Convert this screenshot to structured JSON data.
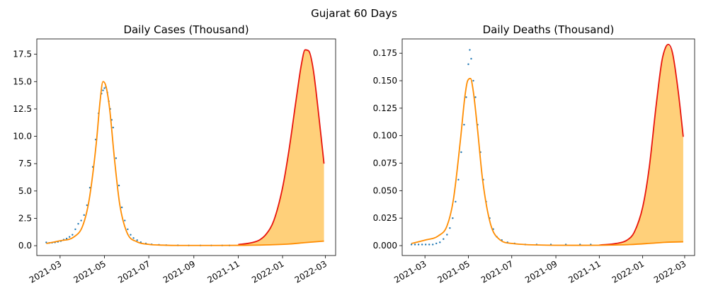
{
  "figure_title": "Gujarat 60 Days",
  "colors": {
    "observed": "#1f77b4",
    "model_early": "#ff8c00",
    "model_projection": "#e8140c",
    "band_fill": "#ffc04d"
  },
  "chart_data": [
    {
      "type": "line",
      "title": "Daily Cases (Thousand)",
      "xlabel": "",
      "ylabel": "",
      "x_axis": "date",
      "xlim": [
        "2021-01-28",
        "2022-03-15"
      ],
      "ylim": [
        -0.9,
        18.9
      ],
      "yticks": [
        0.0,
        2.5,
        5.0,
        7.5,
        10.0,
        12.5,
        15.0,
        17.5
      ],
      "ytick_labels": [
        "0.0",
        "2.5",
        "5.0",
        "7.5",
        "10.0",
        "12.5",
        "15.0",
        "17.5"
      ],
      "xticks": [
        "2021-03-01",
        "2021-05-01",
        "2021-07-01",
        "2021-09-01",
        "2021-11-01",
        "2022-01-01",
        "2022-03-01"
      ],
      "xtick_labels": [
        "2021-03",
        "2021-05",
        "2021-07",
        "2021-09",
        "2021-11",
        "2022-01",
        "2022-03"
      ],
      "grid": false,
      "legend": "none",
      "series": [
        {
          "kind": "scatter",
          "role": "observed",
          "x": [
            "2021-02-10",
            "2021-02-14",
            "2021-02-18",
            "2021-02-22",
            "2021-02-26",
            "2021-03-02",
            "2021-03-06",
            "2021-03-10",
            "2021-03-14",
            "2021-03-18",
            "2021-03-22",
            "2021-03-26",
            "2021-03-30",
            "2021-04-03",
            "2021-04-07",
            "2021-04-11",
            "2021-04-15",
            "2021-04-19",
            "2021-04-23",
            "2021-04-27",
            "2021-04-29",
            "2021-05-01",
            "2021-05-03",
            "2021-05-05",
            "2021-05-07",
            "2021-05-09",
            "2021-05-11",
            "2021-05-13",
            "2021-05-17",
            "2021-05-21",
            "2021-05-25",
            "2021-05-29",
            "2021-06-02",
            "2021-06-06",
            "2021-06-10",
            "2021-06-15",
            "2021-06-20",
            "2021-06-27",
            "2021-07-05",
            "2021-07-15",
            "2021-07-25",
            "2021-08-10",
            "2021-08-25",
            "2021-09-10",
            "2021-09-25",
            "2021-10-10",
            "2021-10-20"
          ],
          "y": [
            0.3,
            0.25,
            0.27,
            0.3,
            0.35,
            0.42,
            0.55,
            0.65,
            0.8,
            1.0,
            1.5,
            2.0,
            2.3,
            2.8,
            3.7,
            5.3,
            7.2,
            9.7,
            12.1,
            13.9,
            14.2,
            14.4,
            14.5,
            14.0,
            13.2,
            12.5,
            11.5,
            10.8,
            8.0,
            5.5,
            3.5,
            2.3,
            1.5,
            1.0,
            0.7,
            0.5,
            0.32,
            0.2,
            0.12,
            0.08,
            0.05,
            0.03,
            0.02,
            0.02,
            0.02,
            0.02,
            0.02
          ]
        },
        {
          "kind": "line",
          "role": "model_early",
          "x": [
            "2021-02-10",
            "2021-03-01",
            "2021-03-20",
            "2021-04-01",
            "2021-04-10",
            "2021-04-20",
            "2021-04-25",
            "2021-04-29",
            "2021-05-03",
            "2021-05-08",
            "2021-05-15",
            "2021-05-22",
            "2021-06-01",
            "2021-06-15",
            "2021-07-01",
            "2021-07-20",
            "2021-08-15",
            "2021-10-01",
            "2021-11-15",
            "2021-12-15",
            "2022-01-10",
            "2022-02-01",
            "2022-02-27"
          ],
          "y": [
            0.2,
            0.45,
            0.8,
            1.8,
            4.2,
            9.5,
            13.2,
            15.0,
            14.6,
            12.6,
            7.8,
            3.8,
            1.2,
            0.35,
            0.12,
            0.05,
            0.02,
            0.02,
            0.04,
            0.08,
            0.15,
            0.28,
            0.42
          ]
        },
        {
          "kind": "line",
          "role": "model_projection",
          "x": [
            "2021-11-01",
            "2021-11-20",
            "2021-12-01",
            "2021-12-10",
            "2021-12-20",
            "2022-01-01",
            "2022-01-10",
            "2022-01-20",
            "2022-01-27",
            "2022-02-01",
            "2022-02-06",
            "2022-02-12",
            "2022-02-20",
            "2022-02-27"
          ],
          "y": [
            0.1,
            0.28,
            0.55,
            1.1,
            2.3,
            5.3,
            8.8,
            13.5,
            16.6,
            17.9,
            17.8,
            16.2,
            11.8,
            7.5
          ]
        }
      ],
      "band": {
        "lower": "model_early",
        "upper": "model_projection",
        "from": "2021-11-01"
      }
    },
    {
      "type": "line",
      "title": "Daily Deaths (Thousand)",
      "xlabel": "",
      "ylabel": "",
      "x_axis": "date",
      "xlim": [
        "2021-01-28",
        "2022-03-15"
      ],
      "ylim": [
        -0.009,
        0.188
      ],
      "yticks": [
        0.0,
        0.025,
        0.05,
        0.075,
        0.1,
        0.125,
        0.15,
        0.175
      ],
      "ytick_labels": [
        "0.000",
        "0.025",
        "0.050",
        "0.075",
        "0.100",
        "0.125",
        "0.150",
        "0.175"
      ],
      "xticks": [
        "2021-03-01",
        "2021-05-01",
        "2021-07-01",
        "2021-09-01",
        "2021-11-01",
        "2022-01-01",
        "2022-03-01"
      ],
      "xtick_labels": [
        "2021-03",
        "2021-05",
        "2021-07",
        "2021-09",
        "2021-11",
        "2022-01",
        "2022-03"
      ],
      "grid": false,
      "legend": "none",
      "series": [
        {
          "kind": "scatter",
          "role": "observed",
          "x": [
            "2021-02-10",
            "2021-02-15",
            "2021-02-20",
            "2021-02-25",
            "2021-03-02",
            "2021-03-07",
            "2021-03-12",
            "2021-03-17",
            "2021-03-22",
            "2021-03-27",
            "2021-04-01",
            "2021-04-05",
            "2021-04-09",
            "2021-04-13",
            "2021-04-17",
            "2021-04-21",
            "2021-04-25",
            "2021-04-28",
            "2021-05-01",
            "2021-05-03",
            "2021-05-05",
            "2021-05-08",
            "2021-05-11",
            "2021-05-14",
            "2021-05-18",
            "2021-05-22",
            "2021-05-26",
            "2021-05-31",
            "2021-06-05",
            "2021-06-10",
            "2021-06-17",
            "2021-06-25",
            "2021-07-05",
            "2021-07-20",
            "2021-08-05",
            "2021-08-25",
            "2021-09-15",
            "2021-10-05",
            "2021-10-20"
          ],
          "y": [
            0.001,
            0.001,
            0.001,
            0.001,
            0.001,
            0.001,
            0.001,
            0.002,
            0.003,
            0.006,
            0.01,
            0.016,
            0.025,
            0.04,
            0.06,
            0.085,
            0.11,
            0.135,
            0.165,
            0.178,
            0.17,
            0.15,
            0.135,
            0.11,
            0.085,
            0.06,
            0.04,
            0.025,
            0.015,
            0.008,
            0.005,
            0.003,
            0.002,
            0.001,
            0.001,
            0.001,
            0.001,
            0.001,
            0.001
          ]
        },
        {
          "kind": "line",
          "role": "model_early",
          "x": [
            "2021-02-10",
            "2021-03-01",
            "2021-03-20",
            "2021-04-01",
            "2021-04-10",
            "2021-04-20",
            "2021-04-26",
            "2021-04-30",
            "2021-05-04",
            "2021-05-08",
            "2021-05-14",
            "2021-05-21",
            "2021-06-01",
            "2021-06-15",
            "2021-07-01",
            "2021-07-20",
            "2021-08-15",
            "2021-10-01",
            "2021-11-15",
            "2021-12-15",
            "2022-01-10",
            "2022-02-01",
            "2022-02-27"
          ],
          "y": [
            0.002,
            0.005,
            0.009,
            0.018,
            0.042,
            0.097,
            0.135,
            0.15,
            0.152,
            0.14,
            0.105,
            0.06,
            0.02,
            0.005,
            0.002,
            0.001,
            0.0005,
            0.0003,
            0.0005,
            0.001,
            0.002,
            0.003,
            0.0035
          ]
        },
        {
          "kind": "line",
          "role": "model_projection",
          "x": [
            "2021-11-01",
            "2021-11-25",
            "2021-12-10",
            "2021-12-20",
            "2022-01-01",
            "2022-01-10",
            "2022-01-20",
            "2022-01-28",
            "2022-02-02",
            "2022-02-06",
            "2022-02-12",
            "2022-02-20",
            "2022-02-27"
          ],
          "y": [
            0.0005,
            0.002,
            0.005,
            0.012,
            0.035,
            0.07,
            0.128,
            0.168,
            0.18,
            0.183,
            0.175,
            0.14,
            0.099
          ]
        }
      ],
      "band": {
        "lower": "model_early",
        "upper": "model_projection",
        "from": "2021-11-01"
      }
    }
  ]
}
